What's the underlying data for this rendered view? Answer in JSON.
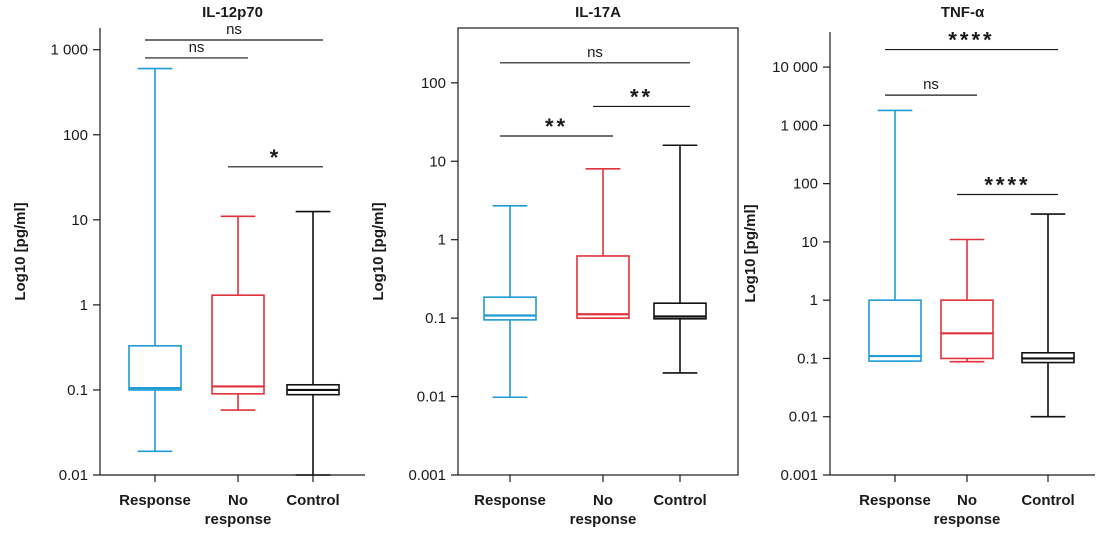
{
  "chart_data": [
    {
      "type": "box",
      "title": "IL-12p70",
      "ylabel": "Log10 [pg/ml]",
      "yscale": "log",
      "ylim": [
        0.01,
        1800
      ],
      "yticks": [
        0.01,
        0.1,
        1,
        10,
        100,
        1000
      ],
      "ytick_labels": [
        "0.01",
        "0.1",
        "1",
        "10",
        "100",
        "1 000"
      ],
      "categories": [
        "Response",
        "No response",
        "Control"
      ],
      "category_labels": [
        [
          "Response"
        ],
        [
          "No",
          "response"
        ],
        [
          "Control"
        ]
      ],
      "colors": [
        "#1f9bd5",
        "#e2323b",
        "#111111"
      ],
      "boxes": [
        {
          "min": 0.019,
          "q1": 0.1,
          "median": 0.105,
          "q3": 0.33,
          "max": 600
        },
        {
          "min": 0.058,
          "q1": 0.09,
          "median": 0.11,
          "q3": 1.3,
          "max": 11
        },
        {
          "min": 0.01,
          "q1": 0.088,
          "median": 0.1,
          "q3": 0.115,
          "max": 12.5
        }
      ],
      "significance": [
        {
          "from": 0,
          "to": 2,
          "label": "ns",
          "y": 1300
        },
        {
          "from": 0,
          "to": 1,
          "label": "ns",
          "y": 800
        },
        {
          "from": 1,
          "to": 2,
          "label": "*",
          "y": 42
        }
      ]
    },
    {
      "type": "box",
      "title": "IL-17A",
      "ylabel": "Log10 [pg/ml]",
      "yscale": "log",
      "ylim": [
        0.001,
        500
      ],
      "yticks": [
        0.001,
        0.01,
        0.1,
        1,
        10,
        100
      ],
      "ytick_labels": [
        "0.001",
        "0.01",
        "0.1",
        "1",
        "10",
        "100"
      ],
      "categories": [
        "Response",
        "No response",
        "Control"
      ],
      "category_labels": [
        [
          "Response"
        ],
        [
          "No",
          "response"
        ],
        [
          "Control"
        ]
      ],
      "colors": [
        "#1f9bd5",
        "#e2323b",
        "#111111"
      ],
      "boxes": [
        {
          "min": 0.0098,
          "q1": 0.095,
          "median": 0.108,
          "q3": 0.185,
          "max": 2.7
        },
        {
          "min": 0.1,
          "q1": 0.1,
          "median": 0.112,
          "q3": 0.62,
          "max": 8
        },
        {
          "min": 0.02,
          "q1": 0.098,
          "median": 0.105,
          "q3": 0.155,
          "max": 16
        }
      ],
      "significance": [
        {
          "from": 0,
          "to": 2,
          "label": "ns",
          "y": 180
        },
        {
          "from": 1,
          "to": 2,
          "label": "**",
          "y": 50
        },
        {
          "from": 0,
          "to": 1,
          "label": "**",
          "y": 21
        }
      ]
    },
    {
      "type": "box",
      "title": "TNF-α",
      "ylabel": "Log10 [pg/ml]",
      "yscale": "log",
      "ylim": [
        0.001,
        40000
      ],
      "yticks": [
        0.001,
        0.01,
        0.1,
        1,
        10,
        100,
        1000,
        10000
      ],
      "ytick_labels": [
        "0.001",
        "0.01",
        "0.1",
        "1",
        "10",
        "100",
        "1 000",
        "10 000"
      ],
      "categories": [
        "Response",
        "No response",
        "Control"
      ],
      "category_labels": [
        [
          "Response"
        ],
        [
          "No",
          "response"
        ],
        [
          "Control"
        ]
      ],
      "colors": [
        "#1f9bd5",
        "#e2323b",
        "#111111"
      ],
      "boxes": [
        {
          "min": 0.09,
          "q1": 0.09,
          "median": 0.11,
          "q3": 1.0,
          "max": 1800
        },
        {
          "min": 0.088,
          "q1": 0.1,
          "median": 0.27,
          "q3": 1.0,
          "max": 11
        },
        {
          "min": 0.01,
          "q1": 0.085,
          "median": 0.1,
          "q3": 0.125,
          "max": 30
        }
      ],
      "significance": [
        {
          "from": 0,
          "to": 2,
          "label": "****",
          "y": 20000
        },
        {
          "from": 0,
          "to": 1,
          "label": "ns",
          "y": 3300
        },
        {
          "from": 1,
          "to": 2,
          "label": "****",
          "y": 65
        }
      ]
    }
  ]
}
